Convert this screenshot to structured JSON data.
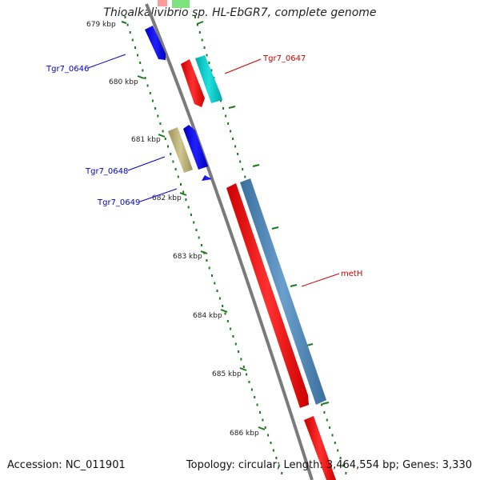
{
  "title": "Thioalkalivibrio sp. HL-EbGR7, complete genome",
  "footer": {
    "accession": "Accession: NC_011901",
    "summary": "Topology: circular; Length: 3,464,554 bp; Genes: 3,330"
  },
  "ticks": [
    "679 kbp",
    "680 kbp",
    "681 kbp",
    "682 kbp",
    "683 kbp",
    "684 kbp",
    "685 kbp",
    "686 kbp"
  ],
  "gene_labels": [
    {
      "id": "Tgr7_0646",
      "text": "Tgr7_0646",
      "color": "#0000cc"
    },
    {
      "id": "Tgr7_0647",
      "text": "Tgr7_0647",
      "color": "#cc0000"
    },
    {
      "id": "Tgr7_0648",
      "text": "Tgr7_0648",
      "color": "#0000cc"
    },
    {
      "id": "Tgr7_0649",
      "text": "Tgr7_0649",
      "color": "#0000cc"
    },
    {
      "id": "metH",
      "text": "metH",
      "color": "#cc0000"
    }
  ],
  "colors": {
    "backbone": "#7a7a7a",
    "tick": "#1a7a1a",
    "red_feature": "#ff0000",
    "blue_feature": "#0000ff",
    "cyan_feature": "#00c8c8",
    "olive_feature": "#b8b078",
    "steel_feature": "#4682b4",
    "green_feature": "#44dd44"
  }
}
